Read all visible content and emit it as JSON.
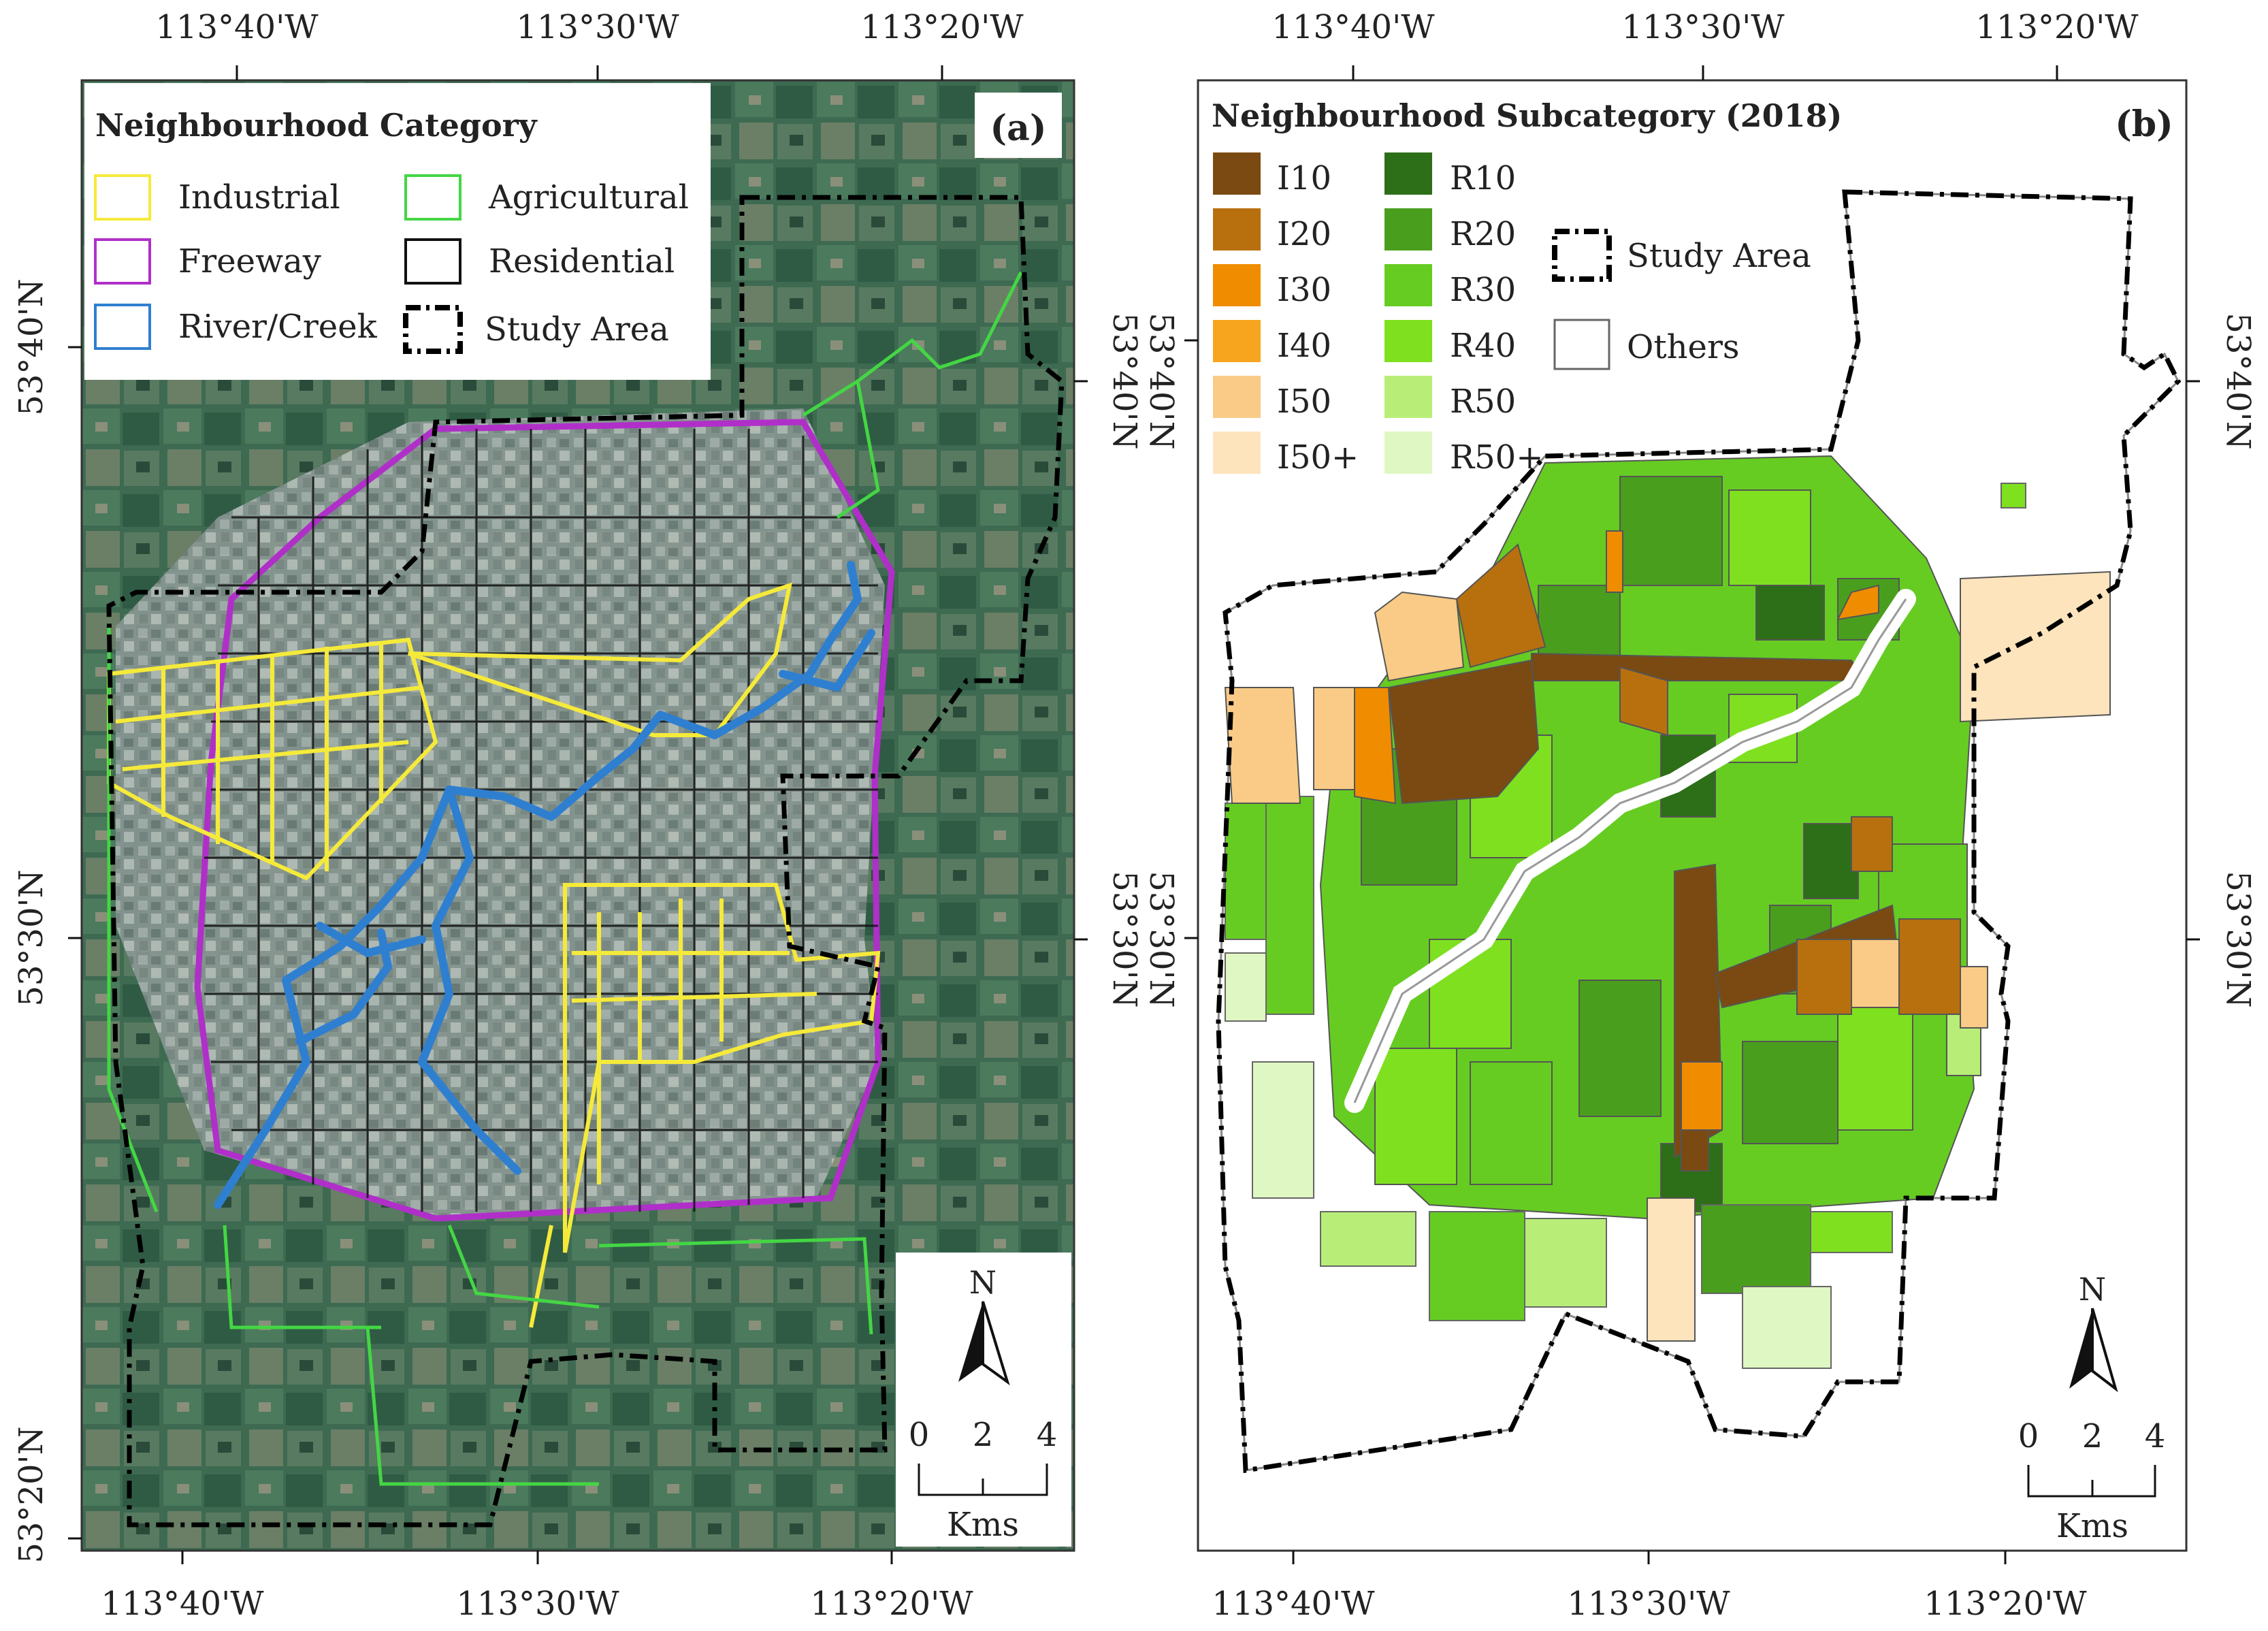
{
  "panel_a": {
    "panel_label": "(a)",
    "legend": {
      "title": "Neighbourhood Category",
      "items": [
        {
          "label": "Industrial",
          "color": "#f5ea3a"
        },
        {
          "label": "Agricultural",
          "color": "#44d644"
        },
        {
          "label": "Freeway",
          "color": "#b02fc9"
        },
        {
          "label": "Residential",
          "color": "#111111"
        },
        {
          "label": "River/Creek",
          "color": "#2f7fd0"
        },
        {
          "label": "Study Area",
          "color": "#000000"
        }
      ]
    },
    "top_ticks": [
      "113°40'W",
      "113°30'W",
      "113°20'W"
    ],
    "bottom_ticks": [
      "113°40'W",
      "113°30'W",
      "113°20'W"
    ],
    "left_ticks": [
      "53°40'N",
      "53°30'N",
      "53°20'N"
    ],
    "right_ticks": [
      "53°40'N",
      "53°30'N"
    ],
    "north_label": "N",
    "scale": {
      "ticks": [
        "0",
        "2",
        "4"
      ],
      "unit": "Kms"
    }
  },
  "panel_b": {
    "panel_label": "(b)",
    "legend": {
      "title": "Neighbourhood Subcategory (2018)",
      "industrial": [
        {
          "label": "I10",
          "color": "#7a4a12"
        },
        {
          "label": "I20",
          "color": "#b8700f"
        },
        {
          "label": "I30",
          "color": "#f08c00"
        },
        {
          "label": "I40",
          "color": "#f7a41e"
        },
        {
          "label": "I50",
          "color": "#f9cb86"
        },
        {
          "label": "I50+",
          "color": "#fde4bc"
        }
      ],
      "residential": [
        {
          "label": "R10",
          "color": "#2d6e18"
        },
        {
          "label": "R20",
          "color": "#4a9e1e"
        },
        {
          "label": "R30",
          "color": "#66cc22"
        },
        {
          "label": "R40",
          "color": "#7fe020"
        },
        {
          "label": "R50",
          "color": "#b8ee78"
        },
        {
          "label": "R50+",
          "color": "#dff7c2"
        }
      ],
      "study_area": "Study Area",
      "others": "Others"
    },
    "top_ticks": [
      "113°40'W",
      "113°30'W",
      "113°20'W"
    ],
    "bottom_ticks": [
      "113°40'W",
      "113°30'W",
      "113°20'W"
    ],
    "left_ticks": [
      "53°40'N",
      "53°30'N"
    ],
    "right_ticks": [
      "53°40'N",
      "53°30'N"
    ],
    "north_label": "N",
    "scale": {
      "ticks": [
        "0",
        "2",
        "4"
      ],
      "unit": "Kms"
    }
  }
}
